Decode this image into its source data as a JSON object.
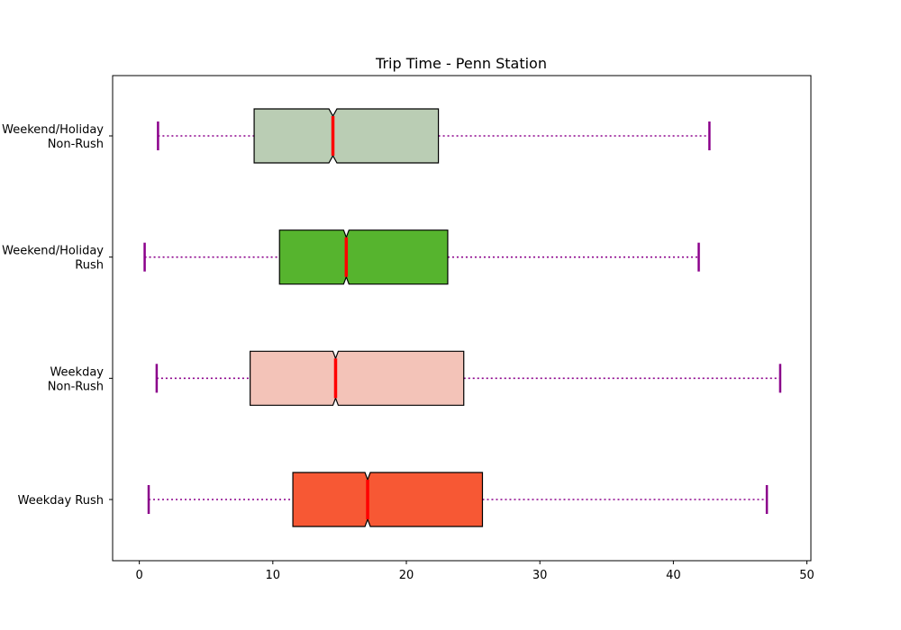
{
  "chart_data": {
    "type": "boxplot",
    "orientation": "horizontal",
    "notched": true,
    "title": "Trip Time - Penn Station",
    "xlabel": "",
    "ylabel": "",
    "xlim": [
      -2,
      50.3
    ],
    "xticks": [
      0,
      10,
      20,
      30,
      40,
      50
    ],
    "grid": false,
    "colors": {
      "whisker": "#8b008b",
      "median": "#ff0000",
      "box_edge": "#000000"
    },
    "categories": [
      {
        "label_lines": [
          "Weekday Rush"
        ],
        "whisker_low": 0.7,
        "q1": 11.5,
        "median": 17.1,
        "q3": 25.7,
        "whisker_high": 47.0,
        "notch_low": 16.9,
        "notch_high": 17.3,
        "color": "#f75834"
      },
      {
        "label_lines": [
          "Weekday",
          "Non-Rush"
        ],
        "whisker_low": 1.3,
        "q1": 8.3,
        "median": 14.7,
        "q3": 24.3,
        "whisker_high": 48.0,
        "notch_low": 14.5,
        "notch_high": 14.9,
        "color": "#f3c3b8"
      },
      {
        "label_lines": [
          "Weekend/Holiday",
          "Rush"
        ],
        "whisker_low": 0.4,
        "q1": 10.5,
        "median": 15.5,
        "q3": 23.1,
        "whisker_high": 41.9,
        "notch_low": 15.3,
        "notch_high": 15.7,
        "color": "#56b42e"
      },
      {
        "label_lines": [
          "Weekend/Holiday",
          "Non-Rush"
        ],
        "whisker_low": 1.4,
        "q1": 8.6,
        "median": 14.5,
        "q3": 22.4,
        "whisker_high": 42.7,
        "notch_low": 14.2,
        "notch_high": 14.8,
        "color": "#bacdb4"
      }
    ]
  }
}
